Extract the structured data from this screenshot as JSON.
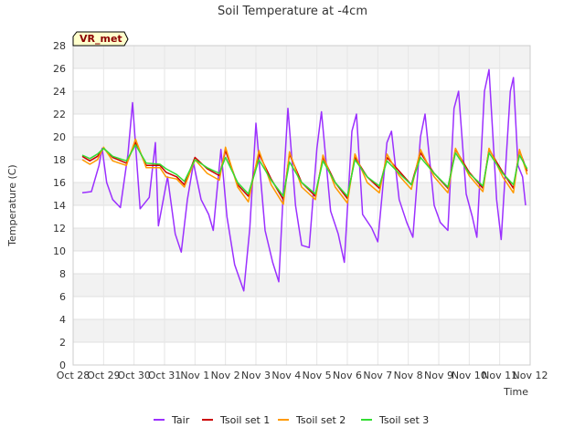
{
  "chart_data": {
    "type": "line",
    "title": "Soil Temperature at -4cm",
    "xlabel": "Time",
    "ylabel": "Temperature (C)",
    "badge": "VR_met",
    "x_ticks": [
      "Oct 28",
      "Oct 29",
      "Oct 30",
      "Oct 31",
      "Nov 1",
      "Nov 2",
      "Nov 3",
      "Nov 4",
      "Nov 5",
      "Nov 6",
      "Nov 7",
      "Nov 8",
      "Nov 9",
      "Nov 10",
      "Nov 11",
      "Nov 12"
    ],
    "xlim": [
      0,
      15
    ],
    "ylim": [
      0,
      28
    ],
    "y_ticks": [
      0,
      2,
      4,
      6,
      8,
      10,
      12,
      14,
      16,
      18,
      20,
      22,
      24,
      26,
      28
    ],
    "grid": true,
    "legend_position": "bottom",
    "series": [
      {
        "name": "Tair",
        "color": "#9b30ff",
        "points": [
          [
            0.3,
            15.1
          ],
          [
            0.6,
            15.2
          ],
          [
            0.85,
            17.5
          ],
          [
            0.95,
            19.0
          ],
          [
            1.1,
            16.0
          ],
          [
            1.3,
            14.5
          ],
          [
            1.55,
            13.8
          ],
          [
            1.8,
            18.5
          ],
          [
            1.95,
            23.0
          ],
          [
            2.2,
            13.7
          ],
          [
            2.5,
            14.7
          ],
          [
            2.7,
            19.5
          ],
          [
            2.8,
            12.2
          ],
          [
            3.1,
            16.5
          ],
          [
            3.35,
            11.5
          ],
          [
            3.55,
            9.9
          ],
          [
            3.75,
            14.5
          ],
          [
            3.95,
            17.7
          ],
          [
            4.2,
            14.5
          ],
          [
            4.45,
            13.2
          ],
          [
            4.6,
            11.8
          ],
          [
            4.85,
            18.9
          ],
          [
            5.05,
            13.0
          ],
          [
            5.3,
            8.8
          ],
          [
            5.6,
            6.5
          ],
          [
            5.8,
            12.0
          ],
          [
            6.0,
            21.2
          ],
          [
            6.3,
            11.8
          ],
          [
            6.55,
            9.0
          ],
          [
            6.75,
            7.3
          ],
          [
            6.95,
            18.0
          ],
          [
            7.05,
            22.5
          ],
          [
            7.3,
            14.0
          ],
          [
            7.5,
            10.5
          ],
          [
            7.75,
            10.3
          ],
          [
            8.0,
            19.0
          ],
          [
            8.15,
            22.2
          ],
          [
            8.45,
            13.5
          ],
          [
            8.7,
            11.5
          ],
          [
            8.9,
            9.0
          ],
          [
            9.15,
            20.5
          ],
          [
            9.3,
            22.0
          ],
          [
            9.5,
            13.2
          ],
          [
            9.8,
            12.0
          ],
          [
            10.0,
            10.8
          ],
          [
            10.3,
            19.5
          ],
          [
            10.45,
            20.5
          ],
          [
            10.7,
            14.5
          ],
          [
            10.95,
            12.5
          ],
          [
            11.15,
            11.2
          ],
          [
            11.4,
            20.0
          ],
          [
            11.55,
            22.0
          ],
          [
            11.85,
            14.0
          ],
          [
            12.05,
            12.5
          ],
          [
            12.3,
            11.8
          ],
          [
            12.5,
            22.5
          ],
          [
            12.65,
            24.0
          ],
          [
            12.9,
            15.0
          ],
          [
            13.1,
            13.0
          ],
          [
            13.25,
            11.2
          ],
          [
            13.5,
            24.0
          ],
          [
            13.65,
            25.9
          ],
          [
            13.9,
            14.5
          ],
          [
            14.05,
            11.0
          ],
          [
            14.35,
            24.0
          ],
          [
            14.45,
            25.2
          ],
          [
            14.6,
            17.5
          ],
          [
            14.75,
            16.5
          ],
          [
            14.85,
            14.0
          ]
        ]
      },
      {
        "name": "Tsoil set 1",
        "color": "#cc0000",
        "points": [
          [
            0.3,
            18.3
          ],
          [
            0.55,
            17.9
          ],
          [
            0.8,
            18.3
          ],
          [
            1.0,
            19.0
          ],
          [
            1.3,
            18.2
          ],
          [
            1.75,
            17.7
          ],
          [
            2.05,
            19.5
          ],
          [
            2.4,
            17.5
          ],
          [
            2.85,
            17.5
          ],
          [
            3.05,
            16.9
          ],
          [
            3.4,
            16.5
          ],
          [
            3.65,
            15.8
          ],
          [
            4.0,
            18.2
          ],
          [
            4.4,
            17.2
          ],
          [
            4.8,
            16.6
          ],
          [
            5.0,
            18.8
          ],
          [
            5.4,
            15.8
          ],
          [
            5.75,
            14.8
          ],
          [
            6.1,
            18.5
          ],
          [
            6.5,
            16.3
          ],
          [
            6.9,
            14.5
          ],
          [
            7.1,
            18.5
          ],
          [
            7.5,
            16.0
          ],
          [
            7.95,
            14.8
          ],
          [
            8.2,
            18.2
          ],
          [
            8.6,
            16.0
          ],
          [
            9.0,
            14.6
          ],
          [
            9.25,
            18.2
          ],
          [
            9.65,
            16.5
          ],
          [
            10.05,
            15.5
          ],
          [
            10.3,
            18.2
          ],
          [
            10.7,
            17.0
          ],
          [
            11.1,
            15.8
          ],
          [
            11.4,
            18.6
          ],
          [
            11.85,
            16.8
          ],
          [
            12.3,
            15.5
          ],
          [
            12.55,
            18.9
          ],
          [
            13.0,
            16.9
          ],
          [
            13.45,
            15.5
          ],
          [
            13.65,
            18.9
          ],
          [
            14.1,
            16.9
          ],
          [
            14.45,
            15.5
          ],
          [
            14.65,
            18.8
          ],
          [
            14.9,
            17.0
          ]
        ]
      },
      {
        "name": "Tsoil set 2",
        "color": "#ff9900",
        "points": [
          [
            0.3,
            18.0
          ],
          [
            0.55,
            17.6
          ],
          [
            0.8,
            18.0
          ],
          [
            1.0,
            19.1
          ],
          [
            1.3,
            17.9
          ],
          [
            1.75,
            17.5
          ],
          [
            2.05,
            19.8
          ],
          [
            2.4,
            17.3
          ],
          [
            2.85,
            17.3
          ],
          [
            3.05,
            16.5
          ],
          [
            3.4,
            16.3
          ],
          [
            3.65,
            15.6
          ],
          [
            4.0,
            18.0
          ],
          [
            4.4,
            16.8
          ],
          [
            4.8,
            16.2
          ],
          [
            5.0,
            19.1
          ],
          [
            5.4,
            15.6
          ],
          [
            5.75,
            14.3
          ],
          [
            6.1,
            18.8
          ],
          [
            6.5,
            15.8
          ],
          [
            6.9,
            14.1
          ],
          [
            7.1,
            18.7
          ],
          [
            7.5,
            15.6
          ],
          [
            7.95,
            14.5
          ],
          [
            8.2,
            18.4
          ],
          [
            8.6,
            15.6
          ],
          [
            9.0,
            14.2
          ],
          [
            9.25,
            18.5
          ],
          [
            9.65,
            16.0
          ],
          [
            10.05,
            15.1
          ],
          [
            10.3,
            18.5
          ],
          [
            10.7,
            16.6
          ],
          [
            11.1,
            15.4
          ],
          [
            11.4,
            18.9
          ],
          [
            11.85,
            16.5
          ],
          [
            12.3,
            15.1
          ],
          [
            12.55,
            19.0
          ],
          [
            13.0,
            16.6
          ],
          [
            13.45,
            15.2
          ],
          [
            13.65,
            19.0
          ],
          [
            14.1,
            16.5
          ],
          [
            14.45,
            15.1
          ],
          [
            14.65,
            18.9
          ],
          [
            14.9,
            16.7
          ]
        ]
      },
      {
        "name": "Tsoil set 3",
        "color": "#33dd33",
        "points": [
          [
            0.3,
            18.4
          ],
          [
            0.55,
            18.1
          ],
          [
            0.8,
            18.5
          ],
          [
            1.0,
            19.0
          ],
          [
            1.3,
            18.3
          ],
          [
            1.75,
            17.9
          ],
          [
            2.05,
            19.3
          ],
          [
            2.4,
            17.7
          ],
          [
            2.85,
            17.6
          ],
          [
            3.05,
            17.2
          ],
          [
            3.4,
            16.7
          ],
          [
            3.65,
            16.1
          ],
          [
            4.0,
            18.0
          ],
          [
            4.4,
            17.3
          ],
          [
            4.8,
            16.8
          ],
          [
            5.0,
            18.2
          ],
          [
            5.4,
            16.0
          ],
          [
            5.75,
            15.0
          ],
          [
            6.1,
            18.0
          ],
          [
            6.5,
            16.2
          ],
          [
            6.9,
            14.8
          ],
          [
            7.1,
            17.8
          ],
          [
            7.5,
            16.0
          ],
          [
            7.95,
            15.0
          ],
          [
            8.2,
            17.9
          ],
          [
            8.6,
            16.0
          ],
          [
            9.0,
            14.8
          ],
          [
            9.25,
            18.0
          ],
          [
            9.65,
            16.5
          ],
          [
            10.05,
            15.7
          ],
          [
            10.3,
            17.9
          ],
          [
            10.7,
            16.8
          ],
          [
            11.1,
            15.8
          ],
          [
            11.4,
            18.2
          ],
          [
            11.85,
            16.8
          ],
          [
            12.3,
            15.6
          ],
          [
            12.55,
            18.6
          ],
          [
            13.0,
            16.8
          ],
          [
            13.45,
            15.7
          ],
          [
            13.65,
            18.6
          ],
          [
            14.1,
            16.8
          ],
          [
            14.45,
            15.8
          ],
          [
            14.65,
            18.4
          ],
          [
            14.9,
            17.2
          ]
        ]
      }
    ]
  }
}
